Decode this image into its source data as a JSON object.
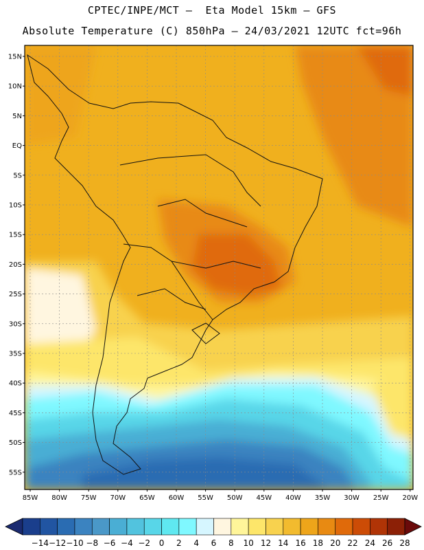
{
  "header": {
    "line1": "CPTEC/INPE/MCT –  Eta Model 15km – GFS",
    "line2": "Absolute Temperature (C) 850hPa – 24/03/2021 12UTC fct=96h"
  },
  "lat_labels": [
    "15N",
    "10N",
    "5N",
    "EQ",
    "5S",
    "10S",
    "15S",
    "20S",
    "25S",
    "30S",
    "35S",
    "40S",
    "45S",
    "50S",
    "55S"
  ],
  "lon_labels": [
    "85W",
    "80W",
    "75W",
    "70W",
    "65W",
    "60W",
    "55W",
    "50W",
    "45W",
    "40W",
    "35W",
    "30W",
    "25W",
    "20W"
  ],
  "colorbar": {
    "labels": [
      "-14",
      "-12",
      "-10",
      "-8",
      "-6",
      "-4",
      "-2",
      "0",
      "2",
      "4",
      "6",
      "8",
      "10",
      "12",
      "14",
      "16",
      "18",
      "20",
      "22",
      "24",
      "26",
      "28"
    ],
    "colors": [
      "#1a3e8c",
      "#2155a2",
      "#2a6cb2",
      "#3b83c0",
      "#4a98c8",
      "#4aaed4",
      "#52c3de",
      "#58d6e8",
      "#5fe8f0",
      "#7ff8ff",
      "#d6f6ff",
      "#fff6e0",
      "#fff59a",
      "#fde66a",
      "#f8d24e",
      "#f2bb2e",
      "#eea51a",
      "#e88a12",
      "#e06a0a",
      "#cc4c06",
      "#b03406",
      "#8c2006"
    ],
    "low_color": "#1a2a70",
    "high_color": "#6a0a0a"
  }
}
